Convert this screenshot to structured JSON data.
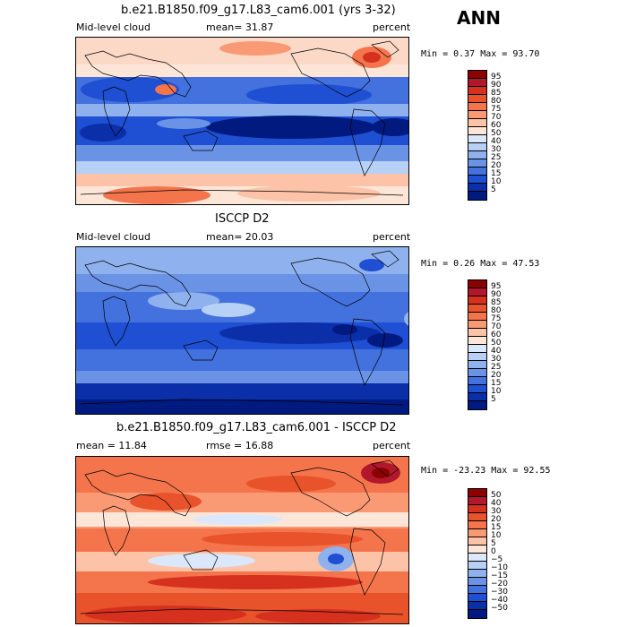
{
  "season": "ANN",
  "panels": [
    {
      "title": "b.e21.B1850.f09_g17.L83_cam6.001 (yrs 3-32)",
      "left_label": "Mid-level cloud",
      "center_label": "mean=  31.87",
      "units": "percent",
      "minmax": "Min =   0.37 Max =  93.70",
      "colorbar": {
        "labels": [
          "95",
          "90",
          "85",
          "80",
          "75",
          "70",
          "60",
          "50",
          "40",
          "30",
          "25",
          "20",
          "15",
          "10",
          "5"
        ],
        "colors": [
          "#8b0000",
          "#b2182b",
          "#d6301f",
          "#e8532b",
          "#f4744c",
          "#f99a75",
          "#fcc3a8",
          "#fde6d8",
          "#dbe8fb",
          "#b7d0f5",
          "#8fb2ee",
          "#6a93e6",
          "#4371de",
          "#1f4fd2",
          "#0b2fa8",
          "#001a80"
        ]
      }
    },
    {
      "title": "ISCCP D2",
      "left_label": "Mid-level cloud",
      "center_label": "mean=  20.03",
      "units": "percent",
      "minmax": "Min =   0.26 Max =  47.53",
      "colorbar": {
        "labels": [
          "95",
          "90",
          "85",
          "80",
          "75",
          "70",
          "60",
          "50",
          "40",
          "30",
          "25",
          "20",
          "15",
          "10",
          "5"
        ],
        "colors": [
          "#8b0000",
          "#b2182b",
          "#d6301f",
          "#e8532b",
          "#f4744c",
          "#f99a75",
          "#fcc3a8",
          "#fde6d8",
          "#dbe8fb",
          "#b7d0f5",
          "#8fb2ee",
          "#6a93e6",
          "#4371de",
          "#1f4fd2",
          "#0b2fa8",
          "#001a80"
        ]
      }
    },
    {
      "title": "b.e21.B1850.f09_g17.L83_cam6.001 - ISCCP D2",
      "left_label": "mean =  11.84",
      "center_label": "rmse =  16.88",
      "units": "percent",
      "minmax": "Min = -23.23 Max =  92.55",
      "colorbar": {
        "labels": [
          "50",
          "40",
          "30",
          "20",
          "15",
          "10",
          "5",
          "0",
          "−5",
          "−10",
          "−15",
          "−20",
          "−30",
          "−40",
          "−50"
        ],
        "colors": [
          "#8b0000",
          "#b2182b",
          "#d6301f",
          "#e8532b",
          "#f4744c",
          "#f99a75",
          "#fcc3a8",
          "#fde6d8",
          "#dbe8fb",
          "#b7d0f5",
          "#8fb2ee",
          "#6a93e6",
          "#4371de",
          "#1f4fd2",
          "#0b2fa8",
          "#001a80"
        ]
      }
    }
  ],
  "chart_data": [
    {
      "type": "heatmap",
      "title": "b.e21.B1850.f09_g17.L83_cam6.001 (yrs 3-32)",
      "variable": "Mid-level cloud",
      "units": "percent",
      "mean": 31.87,
      "min": 0.37,
      "max": 93.7,
      "contour_levels": [
        5,
        10,
        15,
        20,
        25,
        30,
        40,
        50,
        60,
        70,
        75,
        80,
        85,
        90,
        95
      ],
      "projection": "global lat-lon, centered on Pacific"
    },
    {
      "type": "heatmap",
      "title": "ISCCP D2",
      "variable": "Mid-level cloud",
      "units": "percent",
      "mean": 20.03,
      "min": 0.26,
      "max": 47.53,
      "contour_levels": [
        5,
        10,
        15,
        20,
        25,
        30,
        40,
        50,
        60,
        70,
        75,
        80,
        85,
        90,
        95
      ],
      "projection": "global lat-lon, centered on Pacific"
    },
    {
      "type": "heatmap",
      "title": "b.e21.B1850.f09_g17.L83_cam6.001 - ISCCP D2",
      "units": "percent",
      "mean": 11.84,
      "rmse": 16.88,
      "min": -23.23,
      "max": 92.55,
      "contour_levels": [
        -50,
        -40,
        -30,
        -20,
        -15,
        -10,
        -5,
        0,
        5,
        10,
        15,
        20,
        30,
        40,
        50
      ],
      "projection": "global lat-lon, centered on Pacific"
    }
  ]
}
